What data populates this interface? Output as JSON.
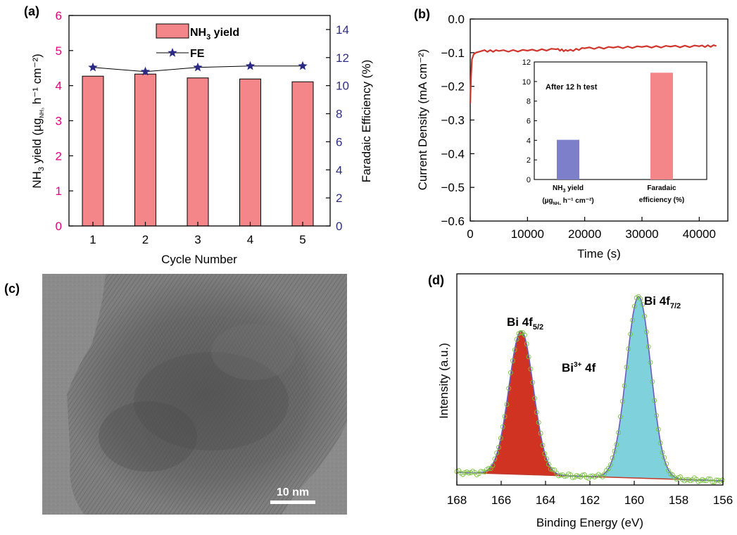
{
  "panels": {
    "a": "(a)",
    "b": "(b)",
    "c": "(c)",
    "d": "(d)"
  },
  "panel_c": {
    "scale_bar_label": "10 nm"
  },
  "colors": {
    "bar_pink": "#F4868A",
    "star_navy": "#2A2A84",
    "left_axis_pink": "#E5007E",
    "right_axis_navy": "#2E2E80",
    "line_red": "#D0352C",
    "inset_blue": "#7D7FCB",
    "inset_pink": "#F4868A",
    "peak_red": "#D03322",
    "peak_cyan": "#7FD2DC",
    "fit_purple": "#6A5BBF",
    "data_green": "#7CC241"
  },
  "chart_data": [
    {
      "type": "bar",
      "panel": "a",
      "xlabel": "Cycle Number",
      "ylabel_main": "NH",
      "ylabel_parts": [
        "3",
        " yield (µg",
        "NH₃",
        " h⁻¹ cm⁻²)"
      ],
      "y2label": "Faradaic Efficiency (%)",
      "categories": [
        "1",
        "2",
        "3",
        "4",
        "5"
      ],
      "ylim": [
        0,
        6
      ],
      "yticks": [
        "0",
        "1",
        "2",
        "3",
        "4",
        "5",
        "6"
      ],
      "y2lim": [
        0,
        15
      ],
      "y2ticks": [
        "0",
        "2",
        "4",
        "6",
        "8",
        "10",
        "12",
        "14"
      ],
      "series": [
        {
          "name": "NH₃ yield",
          "legend_main": "NH",
          "legend_sub": "3",
          "legend_rest": " yield",
          "axis": "left",
          "kind": "bar",
          "values": [
            4.27,
            4.33,
            4.22,
            4.19,
            4.11
          ]
        },
        {
          "name": "FE",
          "axis": "right",
          "kind": "line-star",
          "values": [
            11.3,
            11.0,
            11.3,
            11.4,
            11.4
          ]
        }
      ]
    },
    {
      "type": "line",
      "panel": "b",
      "xlabel": "Time (s)",
      "ylabel": "Current Density (mA cm⁻²)",
      "xlim": [
        0,
        45000
      ],
      "xticks": [
        "0",
        "10000",
        "20000",
        "30000",
        "40000"
      ],
      "ylim": [
        -0.6,
        0.0
      ],
      "yticks": [
        "0.0",
        "−0.1",
        "−0.2",
        "−0.3",
        "−0.4",
        "−0.5",
        "−0.6"
      ],
      "x": [
        0,
        150,
        300,
        600,
        1000,
        2000,
        5000,
        10000,
        15000,
        17000,
        20000,
        25000,
        30000,
        35000,
        40000,
        43000
      ],
      "y": [
        -0.25,
        -0.17,
        -0.12,
        -0.105,
        -0.1,
        -0.095,
        -0.095,
        -0.094,
        -0.09,
        -0.095,
        -0.087,
        -0.085,
        -0.083,
        -0.082,
        -0.081,
        -0.08
      ],
      "inset": {
        "type": "bar",
        "title": "After 12 h test",
        "ylim": [
          0,
          12
        ],
        "yticks": [
          "0",
          "2",
          "4",
          "6",
          "8",
          "10",
          "12"
        ],
        "categories": [
          {
            "line1_main": "NH",
            "line1_sub": "3",
            "line1_rest": " yield",
            "line2_a": "(µg",
            "line2_sub": "NH₃",
            "line2_b": " h⁻¹ cm⁻²)"
          },
          {
            "line1": "Faradaic",
            "line2": "efficiency (%)"
          }
        ],
        "values": [
          4.05,
          10.9
        ]
      }
    },
    {
      "type": "line",
      "panel": "d",
      "xlabel": "Binding Energy (eV)",
      "ylabel": "Intensity (a.u.)",
      "xlim": [
        168,
        156
      ],
      "xticks": [
        "168",
        "166",
        "164",
        "162",
        "160",
        "158",
        "156"
      ],
      "series": [
        {
          "name": "Bi 4f5/2",
          "center": 165.1,
          "height": 0.68
        },
        {
          "name": "Bi 4f7/2",
          "center": 159.8,
          "height": 0.86
        }
      ],
      "baseline": [
        0.06,
        0.02
      ],
      "annotations": {
        "peak1_main": "Bi 4f",
        "peak1_sub": "5/2",
        "peak2_main": "Bi 4f",
        "peak2_sub": "7/2",
        "center_main": "Bi",
        "center_sup": "3+",
        "center_rest": " 4f"
      }
    }
  ]
}
